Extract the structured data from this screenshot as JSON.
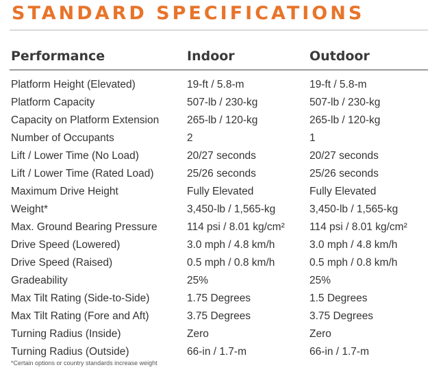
{
  "title": "STANDARD SPECIFICATIONS",
  "accent_color": "#e8742a",
  "table": {
    "headers": [
      "Performance",
      "Indoor",
      "Outdoor"
    ],
    "rows": [
      [
        "Platform Height (Elevated)",
        "19-ft / 5.8-m",
        "19-ft / 5.8-m"
      ],
      [
        "Platform Capacity",
        "507-lb / 230-kg",
        "507-lb / 230-kg"
      ],
      [
        "Capacity on Platform Extension",
        "265-lb / 120-kg",
        "265-lb / 120-kg"
      ],
      [
        "Number of Occupants",
        "2",
        "1"
      ],
      [
        "Lift / Lower Time (No Load)",
        "20/27 seconds",
        "20/27 seconds"
      ],
      [
        "Lift / Lower Time (Rated Load)",
        "25/26 seconds",
        "25/26 seconds"
      ],
      [
        "Maximum Drive Height",
        "Fully Elevated",
        "Fully Elevated"
      ],
      [
        "Weight*",
        "3,450-lb / 1,565-kg",
        "3,450-lb / 1,565-kg"
      ],
      [
        "Max. Ground Bearing Pressure",
        "114 psi / 8.01 kg/cm²",
        "114 psi / 8.01 kg/cm²"
      ],
      [
        "Drive Speed (Lowered)",
        "3.0 mph / 4.8 km/h",
        "3.0 mph / 4.8 km/h"
      ],
      [
        "Drive Speed (Raised)",
        "0.5 mph / 0.8 km/h",
        "0.5 mph / 0.8 km/h"
      ],
      [
        "Gradeability",
        "25%",
        "25%"
      ],
      [
        "Max Tilt Rating (Side-to-Side)",
        "1.75 Degrees",
        "1.5 Degrees"
      ],
      [
        "Max Tilt Rating (Fore and Aft)",
        "3.75 Degrees",
        "3.75 Degrees"
      ],
      [
        "Turning Radius (Inside)",
        "Zero",
        "Zero"
      ],
      [
        "Turning Radius (Outside)",
        "66-in / 1.7-m",
        "66-in / 1.7-m"
      ]
    ]
  },
  "footnote": "*Certain options or country standards increase weight"
}
